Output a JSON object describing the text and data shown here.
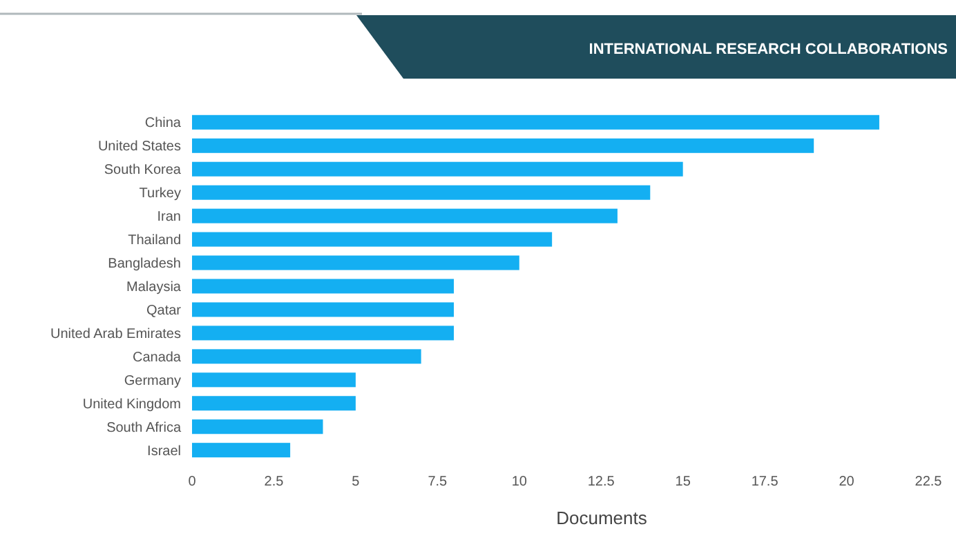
{
  "chart_data": {
    "type": "bar",
    "orientation": "horizontal",
    "title": "INTERNATIONAL RESEARCH COLLABORATIONS",
    "xlabel": "Documents",
    "categories": [
      "China",
      "United States",
      "South Korea",
      "Turkey",
      "Iran",
      "Thailand",
      "Bangladesh",
      "Malaysia",
      "Qatar",
      "United Arab Emirates",
      "Canada",
      "Germany",
      "United Kingdom",
      "South Africa",
      "Israel"
    ],
    "values": [
      21,
      19,
      15,
      14,
      13,
      11,
      10,
      8,
      8,
      8,
      7,
      5,
      5,
      4,
      3
    ],
    "color": "#14aff2",
    "xlim": [
      0,
      22.5
    ],
    "xticks": [
      0,
      2.5,
      5,
      7.5,
      10,
      12.5,
      15,
      17.5,
      20,
      22.5
    ]
  }
}
